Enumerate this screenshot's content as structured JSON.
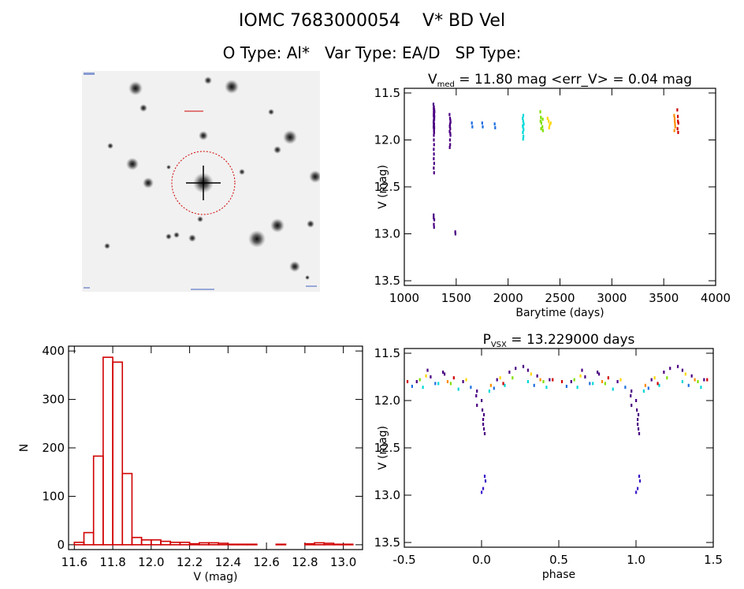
{
  "header": {
    "title_parts": [
      "IOMC 7683000054",
      "V* BD Vel"
    ],
    "subtitle_parts": [
      "O Type: Al*",
      "Var Type: EA/D",
      "SP Type:"
    ]
  },
  "image_panel": {
    "label": "finder-image"
  },
  "chart_data": [
    {
      "id": "lightcurve",
      "type": "scatter",
      "title": {
        "prefix": "V",
        "sub": "med",
        "rest": " = 11.80 mag <err_V> = 0.04 mag"
      },
      "xlabel": "Barytime (days)",
      "ylabel": "V (mag)",
      "xlim": [
        1000,
        4000
      ],
      "ylim": [
        13.55,
        11.45
      ],
      "y_inverted": true,
      "xticks": [
        1000,
        1500,
        2000,
        2500,
        3000,
        3500,
        4000
      ],
      "yticks": [
        11.5,
        12.0,
        12.5,
        13.0,
        13.5
      ],
      "series": [
        {
          "color": "#4b0082",
          "x": [
            1280,
            1285,
            1290,
            1282,
            1288,
            1283,
            1287,
            1281,
            1284,
            1286,
            1283,
            1288,
            1285,
            1282,
            1287,
            1284,
            1289,
            1281,
            1286,
            1283,
            1285,
            1288,
            1282,
            1284,
            1286,
            1283,
            1285,
            1283,
            1287,
            1283,
            1286,
            1282,
            1288,
            1284,
            1286,
            1282,
            1284,
            1287,
            1285,
            1283,
            1286
          ],
          "y": [
            11.62,
            11.65,
            11.7,
            11.74,
            11.78,
            11.8,
            11.83,
            11.86,
            11.88,
            11.9,
            11.72,
            11.68,
            11.76,
            11.82,
            11.92,
            11.95,
            11.75,
            11.81,
            11.84,
            11.69,
            11.77,
            11.87,
            11.66,
            12.0,
            12.05,
            12.1,
            12.15,
            12.2,
            12.25,
            12.3,
            12.35,
            12.8,
            12.85,
            12.9,
            12.93,
            12.83,
            11.79,
            11.73,
            11.91,
            11.85,
            11.71
          ]
        },
        {
          "color": "#4b0082",
          "x": [
            1435,
            1440,
            1445,
            1438,
            1442,
            1436,
            1444,
            1439,
            1441,
            1437,
            1443,
            1440,
            1438,
            1442,
            1490,
            1492
          ],
          "y": [
            11.73,
            11.77,
            11.81,
            11.85,
            11.88,
            11.91,
            11.95,
            12.0,
            12.05,
            12.08,
            11.79,
            11.83,
            11.86,
            11.93,
            12.98,
            13.0
          ]
        },
        {
          "color": "#1e6fe0",
          "x": [
            1650,
            1655,
            1750,
            1755,
            1870,
            1875
          ],
          "y": [
            11.82,
            11.86,
            11.82,
            11.86,
            11.83,
            11.87
          ]
        },
        {
          "color": "#00d8d8",
          "x": [
            2140,
            2145,
            2150,
            2143,
            2148,
            2142,
            2147,
            2144,
            2146,
            2141
          ],
          "y": [
            11.77,
            11.8,
            11.83,
            11.86,
            11.89,
            11.92,
            11.96,
            11.99,
            11.74,
            11.85
          ]
        },
        {
          "color": "#7fe000",
          "x": [
            2310,
            2315,
            2320,
            2330,
            2335,
            2312,
            2318,
            2333
          ],
          "y": [
            11.7,
            11.76,
            11.82,
            11.86,
            11.9,
            11.8,
            11.88,
            11.78
          ]
        },
        {
          "color": "#ffd700",
          "x": [
            2380,
            2390,
            2400,
            2410,
            2395
          ],
          "y": [
            11.77,
            11.8,
            11.84,
            11.82,
            11.87
          ]
        },
        {
          "color": "#ff8c00",
          "x": [
            3600,
            3605,
            3610,
            3602,
            3608,
            3604
          ],
          "y": [
            11.74,
            11.8,
            11.86,
            11.9,
            11.83,
            11.77
          ]
        },
        {
          "color": "#d00000",
          "x": [
            3630,
            3635,
            3640,
            3632,
            3638,
            3636
          ],
          "y": [
            11.68,
            11.75,
            11.82,
            11.88,
            11.92,
            11.8
          ]
        }
      ]
    },
    {
      "id": "histogram",
      "type": "bar",
      "xlabel": "V (mag)",
      "ylabel": "N",
      "xlim": [
        11.57,
        13.1
      ],
      "ylim": [
        -10,
        410
      ],
      "xticks": [
        11.6,
        11.8,
        12.0,
        12.2,
        12.4,
        12.6,
        12.8,
        13.0
      ],
      "yticks": [
        0,
        100,
        200,
        300,
        400
      ],
      "bin_edges": [
        11.6,
        11.65,
        11.7,
        11.75,
        11.8,
        11.85,
        11.9,
        11.95,
        12.0,
        12.05,
        12.1,
        12.15,
        12.2,
        12.25,
        12.3,
        12.35,
        12.4,
        12.45,
        12.5,
        12.55,
        12.6,
        12.65,
        12.7,
        12.75,
        12.8,
        12.85,
        12.9,
        12.95,
        13.0,
        13.05
      ],
      "values": [
        5,
        25,
        183,
        387,
        377,
        147,
        15,
        10,
        10,
        7,
        5,
        5,
        2,
        4,
        4,
        3,
        1,
        1,
        1,
        0,
        0,
        1,
        0,
        0,
        2,
        4,
        3,
        1,
        1
      ],
      "color": "#d00000"
    },
    {
      "id": "phased",
      "type": "scatter",
      "title": {
        "prefix": "P",
        "sub": "VSX",
        "rest": " = 13.229000 days"
      },
      "xlabel": "phase",
      "ylabel": "V (mag)",
      "xlim": [
        -0.5,
        1.5
      ],
      "ylim": [
        13.55,
        11.45
      ],
      "y_inverted": true,
      "xticks": [
        -0.5,
        0.0,
        0.5,
        1.0,
        1.5
      ],
      "yticks": [
        11.5,
        12.0,
        12.5,
        13.0,
        13.5
      ],
      "series": [
        {
          "color": "#4b0082",
          "x": [
            -0.42,
            -0.33,
            -0.24,
            -0.12,
            -0.03,
            0.1,
            0.18,
            0.27,
            0.36,
            0.44,
            0.58,
            0.67,
            0.76,
            0.88,
            0.97,
            1.1,
            1.18,
            1.27,
            1.36,
            1.44,
            -0.35,
            -0.25,
            0.22,
            0.3,
            0.65,
            0.75,
            1.22,
            1.3
          ],
          "y": [
            11.8,
            11.75,
            11.72,
            11.8,
            11.9,
            11.78,
            11.7,
            11.64,
            11.74,
            11.78,
            11.8,
            11.75,
            11.72,
            11.8,
            11.9,
            11.78,
            11.7,
            11.64,
            11.74,
            11.78,
            11.68,
            11.7,
            11.66,
            11.68,
            11.68,
            11.7,
            11.66,
            11.68
          ]
        },
        {
          "color": "#4b0082",
          "x": [
            0.0,
            0.005,
            0.01,
            0.015,
            0.02,
            0.01,
            0.015,
            1.0,
            1.005,
            1.01,
            1.015,
            1.02,
            1.01,
            1.015,
            -0.035,
            -0.03,
            0.965,
            0.97
          ],
          "y": [
            12.0,
            12.1,
            12.2,
            12.3,
            12.35,
            12.25,
            12.15,
            12.0,
            12.1,
            12.2,
            12.3,
            12.35,
            12.25,
            12.15,
            11.95,
            12.05,
            11.95,
            12.05
          ]
        },
        {
          "color": "#3b18c8",
          "x": [
            0.0,
            0.01,
            0.025,
            0.02,
            1.0,
            1.01,
            1.025,
            1.02
          ],
          "y": [
            12.97,
            12.93,
            12.85,
            12.8,
            12.97,
            12.93,
            12.85,
            12.8
          ]
        },
        {
          "color": "#1e6fe0",
          "x": [
            -0.45,
            -0.3,
            -0.07,
            0.08,
            0.34,
            0.55,
            0.7,
            0.93,
            1.08,
            1.34
          ],
          "y": [
            11.85,
            11.82,
            11.86,
            11.87,
            11.84,
            11.85,
            11.82,
            11.86,
            11.87,
            11.84
          ]
        },
        {
          "color": "#00d8d8",
          "x": [
            -0.38,
            -0.28,
            -0.15,
            0.05,
            0.15,
            0.3,
            0.42,
            0.62,
            0.72,
            0.85,
            1.05,
            1.15,
            1.3,
            1.42
          ],
          "y": [
            11.86,
            11.82,
            11.88,
            11.9,
            11.84,
            11.8,
            11.86,
            11.86,
            11.82,
            11.88,
            11.9,
            11.84,
            11.8,
            11.86
          ]
        },
        {
          "color": "#7fe000",
          "x": [
            -0.4,
            -0.2,
            0.2,
            0.4,
            0.6,
            0.8,
            1.2,
            1.4
          ],
          "y": [
            11.78,
            11.82,
            11.76,
            11.8,
            11.78,
            11.82,
            11.76,
            11.8
          ]
        },
        {
          "color": "#ffd700",
          "x": [
            -0.36,
            -0.1,
            0.12,
            0.32,
            0.64,
            0.9,
            1.12,
            1.32
          ],
          "y": [
            11.74,
            11.78,
            11.76,
            11.72,
            11.74,
            11.78,
            11.76,
            11.72
          ]
        },
        {
          "color": "#ff8c00",
          "x": [
            -0.22,
            0.06,
            0.38,
            0.78,
            1.06,
            1.38
          ],
          "y": [
            11.8,
            11.84,
            11.78,
            11.8,
            11.84,
            11.78
          ]
        },
        {
          "color": "#d00000",
          "x": [
            -0.48,
            -0.18,
            0.14,
            0.46,
            0.52,
            0.82,
            1.14,
            1.46
          ],
          "y": [
            11.8,
            11.76,
            11.82,
            11.78,
            11.8,
            11.76,
            11.82,
            11.78
          ]
        }
      ]
    }
  ]
}
